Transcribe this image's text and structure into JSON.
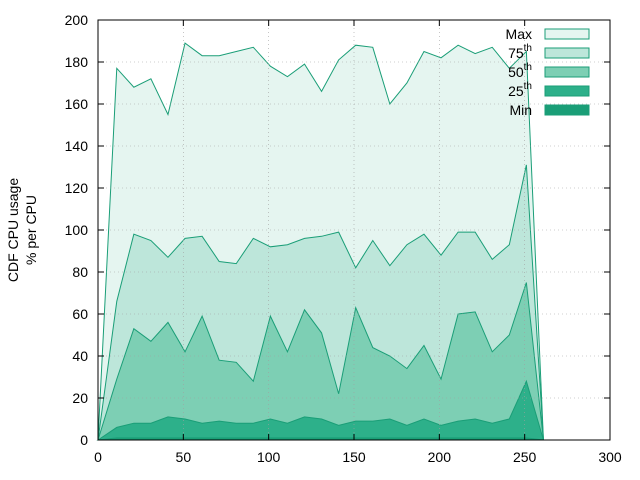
{
  "chart_data": {
    "type": "area",
    "title": "",
    "xlabel": "",
    "ylabel": [
      "CDF CPU usage",
      "% per CPU"
    ],
    "xlim": [
      0,
      300
    ],
    "ylim": [
      0,
      200
    ],
    "xticks": [
      "0",
      "50",
      "100",
      "150",
      "200",
      "250",
      "300"
    ],
    "yticks": [
      "0",
      "20",
      "40",
      "60",
      "80",
      "100",
      "120",
      "140",
      "160",
      "180",
      "200"
    ],
    "grid": true,
    "legend_position": "top-right",
    "x": [
      0,
      11,
      21,
      31,
      41,
      51,
      61,
      71,
      81,
      91,
      101,
      111,
      121,
      131,
      141,
      151,
      161,
      171,
      181,
      191,
      201,
      211,
      221,
      231,
      241,
      251,
      261
    ],
    "series": [
      {
        "name": "Max",
        "sup": "",
        "color": "#e5f5f0",
        "values": [
          0,
          177,
          168,
          172,
          155,
          189,
          183,
          183,
          185,
          187,
          178,
          173,
          179,
          166,
          181,
          188,
          187,
          160,
          170,
          185,
          182,
          188,
          184,
          187,
          177,
          185,
          0
        ]
      },
      {
        "name": "75",
        "sup": "th",
        "color": "#bde6da",
        "values": [
          0,
          66,
          98,
          95,
          87,
          96,
          97,
          85,
          84,
          96,
          92,
          93,
          96,
          97,
          99,
          82,
          95,
          83,
          93,
          98,
          88,
          99,
          99,
          86,
          93,
          131,
          0
        ]
      },
      {
        "name": "50",
        "sup": "th",
        "color": "#7dcfb4",
        "values": [
          0,
          29,
          53,
          47,
          56,
          42,
          59,
          38,
          37,
          28,
          59,
          42,
          62,
          51,
          22,
          63,
          44,
          40,
          34,
          45,
          29,
          60,
          61,
          42,
          50,
          75,
          0
        ]
      },
      {
        "name": "25",
        "sup": "th",
        "color": "#2db08a",
        "values": [
          0,
          6,
          8,
          8,
          11,
          10,
          8,
          9,
          8,
          8,
          10,
          8,
          11,
          10,
          7,
          9,
          9,
          10,
          7,
          10,
          7,
          9,
          10,
          8,
          10,
          28,
          0
        ]
      },
      {
        "name": "Min",
        "sup": "",
        "color": "#1a9e77",
        "values": [
          0,
          1,
          1,
          1,
          1,
          1,
          1,
          1,
          1,
          1,
          1,
          1,
          1,
          1,
          1,
          1,
          1,
          1,
          1,
          1,
          1,
          1,
          1,
          1,
          1,
          1,
          0
        ]
      }
    ],
    "outline_color": "#1a9e77"
  }
}
